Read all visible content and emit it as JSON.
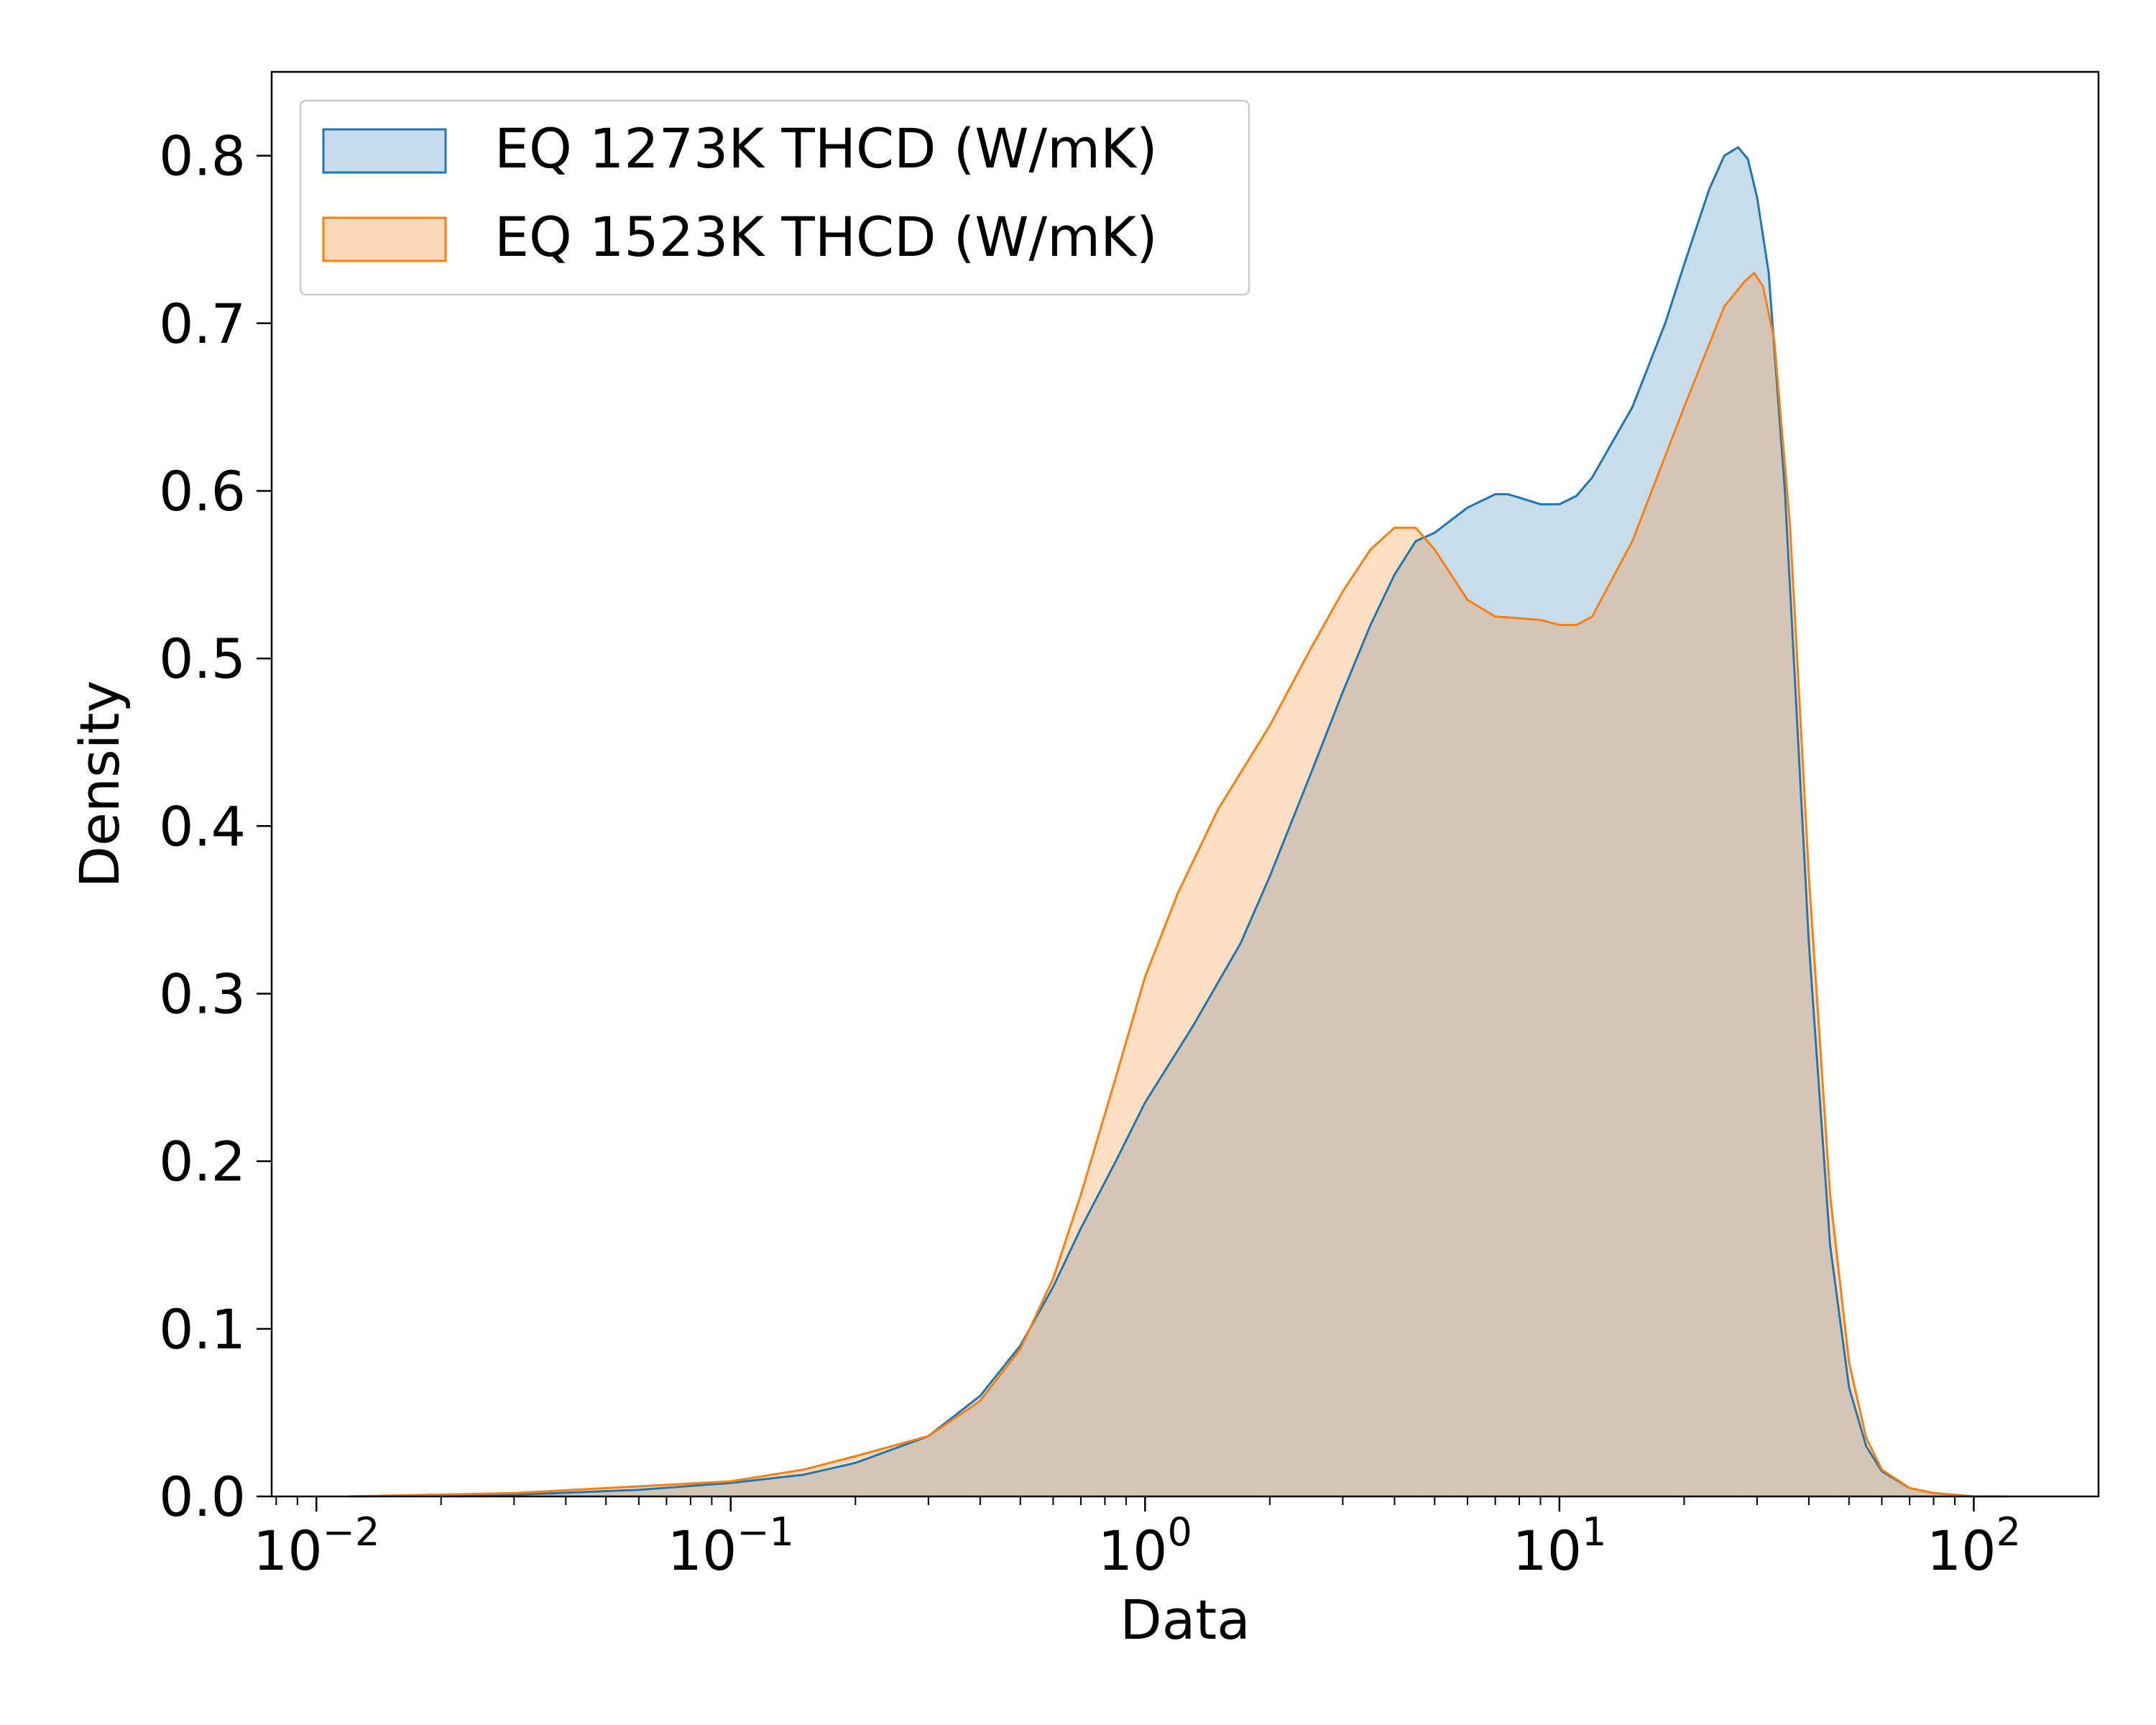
{
  "chart_data": {
    "type": "area",
    "xscale": "log",
    "xlim": [
      0.0078,
      200
    ],
    "ylim": [
      0.0,
      0.85
    ],
    "xlabel": "Data",
    "ylabel": "Density",
    "grid": false,
    "legend_position": "top-left",
    "x_ticks": [
      {
        "value": 0.01,
        "base": "10",
        "exp": "−2"
      },
      {
        "value": 0.1,
        "base": "10",
        "exp": "−1"
      },
      {
        "value": 1,
        "base": "10",
        "exp": "0"
      },
      {
        "value": 10,
        "base": "10",
        "exp": "1"
      },
      {
        "value": 100,
        "base": "10",
        "exp": "2"
      }
    ],
    "y_ticks": [
      {
        "value": 0.0,
        "label": "0.0"
      },
      {
        "value": 0.1,
        "label": "0.1"
      },
      {
        "value": 0.2,
        "label": "0.2"
      },
      {
        "value": 0.3,
        "label": "0.3"
      },
      {
        "value": 0.4,
        "label": "0.4"
      },
      {
        "value": 0.5,
        "label": "0.5"
      },
      {
        "value": 0.6,
        "label": "0.6"
      },
      {
        "value": 0.7,
        "label": "0.7"
      },
      {
        "value": 0.8,
        "label": "0.8"
      }
    ],
    "series": [
      {
        "name": "EQ 1273K THCD (W/mK)",
        "line_color": "#1f77b4",
        "fill_color": "#c6dbec",
        "x": [
          0.012,
          0.03,
          0.06,
          0.1,
          0.15,
          0.2,
          0.3,
          0.4,
          0.5,
          0.6,
          0.7,
          0.85,
          1.0,
          1.3,
          1.7,
          2.0,
          2.5,
          3.0,
          3.5,
          4.0,
          4.5,
          5.0,
          6.0,
          7.0,
          7.5,
          8.0,
          9.0,
          10.0,
          11.0,
          12.0,
          15.0,
          18.0,
          20.0,
          23.0,
          25.0,
          27.0,
          28.5,
          30.0,
          32.0,
          35.0,
          40.0,
          45.0,
          50.0,
          55.0,
          60.0,
          70.0,
          80.0,
          90.0,
          100.0,
          120.0
        ],
        "y": [
          0.0,
          0.001,
          0.004,
          0.008,
          0.013,
          0.02,
          0.036,
          0.06,
          0.09,
          0.125,
          0.16,
          0.2,
          0.235,
          0.28,
          0.33,
          0.37,
          0.43,
          0.48,
          0.52,
          0.55,
          0.57,
          0.575,
          0.59,
          0.598,
          0.598,
          0.596,
          0.592,
          0.592,
          0.597,
          0.608,
          0.65,
          0.7,
          0.735,
          0.78,
          0.8,
          0.805,
          0.798,
          0.775,
          0.73,
          0.6,
          0.33,
          0.15,
          0.065,
          0.03,
          0.015,
          0.005,
          0.002,
          0.001,
          0.0,
          0.0
        ]
      },
      {
        "name": "EQ 1523K THCD (W/mK)",
        "line_color": "#ff7f0e",
        "fill_color": "#fdd9b7",
        "x": [
          0.012,
          0.03,
          0.06,
          0.1,
          0.15,
          0.2,
          0.3,
          0.4,
          0.5,
          0.6,
          0.7,
          0.85,
          1.0,
          1.2,
          1.5,
          2.0,
          2.5,
          3.0,
          3.5,
          4.0,
          4.5,
          5.0,
          6.0,
          7.0,
          8.0,
          9.0,
          10.0,
          11.0,
          12.0,
          15.0,
          20.0,
          25.0,
          28.0,
          29.5,
          31.0,
          33.0,
          36.0,
          40.0,
          45.0,
          50.0,
          55.0,
          60.0,
          70.0,
          80.0,
          90.0,
          100.0,
          120.0
        ],
        "y": [
          0.0,
          0.002,
          0.006,
          0.009,
          0.016,
          0.024,
          0.036,
          0.057,
          0.088,
          0.13,
          0.18,
          0.25,
          0.31,
          0.36,
          0.41,
          0.46,
          0.505,
          0.54,
          0.565,
          0.578,
          0.578,
          0.565,
          0.535,
          0.525,
          0.524,
          0.523,
          0.52,
          0.52,
          0.525,
          0.57,
          0.65,
          0.71,
          0.725,
          0.73,
          0.722,
          0.69,
          0.58,
          0.37,
          0.18,
          0.08,
          0.035,
          0.016,
          0.005,
          0.002,
          0.001,
          0.0,
          0.0
        ]
      }
    ]
  }
}
